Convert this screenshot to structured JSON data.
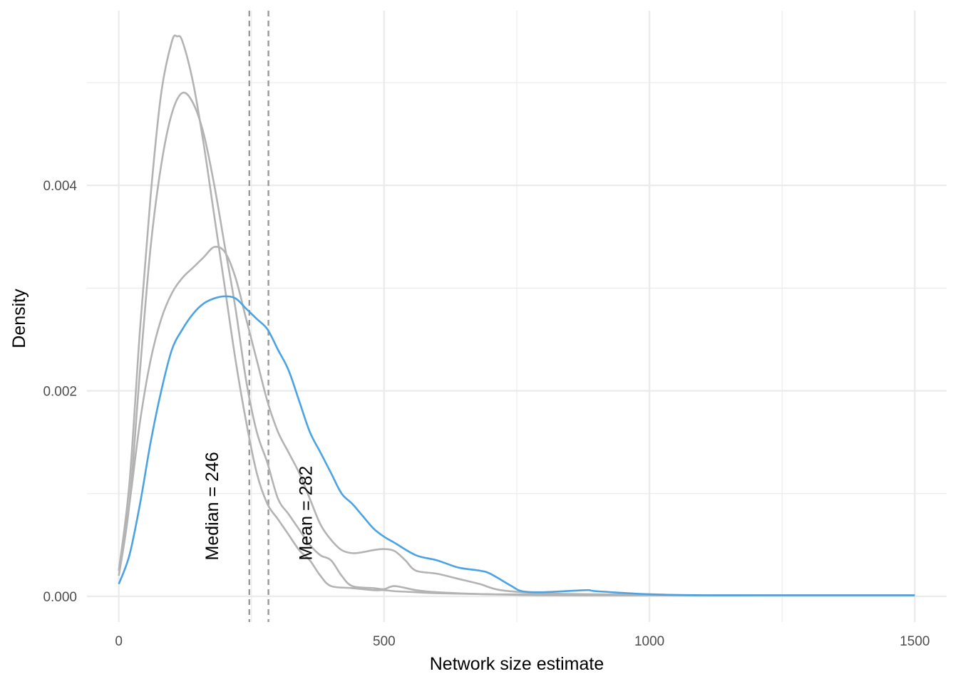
{
  "chart_data": {
    "type": "line",
    "xlabel": "Network size estimate",
    "ylabel": "Density",
    "xlim": [
      -60,
      1560
    ],
    "ylim": [
      -0.00025,
      0.0057
    ],
    "x_ticks": [
      0,
      500,
      1000,
      1500
    ],
    "x_tick_labels": [
      "0",
      "500",
      "1000",
      "1500"
    ],
    "y_ticks": [
      0,
      0.002,
      0.004
    ],
    "y_tick_labels": [
      "0.000",
      "0.002",
      "0.004"
    ],
    "grid": true,
    "legend": "none",
    "colors": {
      "highlight": "#4ba3e3",
      "other": "#b3b3b3",
      "reference": "#999999",
      "grid": "#ebebeb"
    },
    "series": [
      {
        "highlight": false,
        "points": [
          [
            0,
            0.00025
          ],
          [
            20,
            0.0011
          ],
          [
            40,
            0.0026
          ],
          [
            60,
            0.0039
          ],
          [
            80,
            0.0049
          ],
          [
            100,
            0.0054
          ],
          [
            110,
            0.00545
          ],
          [
            120,
            0.0054
          ],
          [
            140,
            0.005
          ],
          [
            160,
            0.0044
          ],
          [
            180,
            0.0037
          ],
          [
            200,
            0.003
          ],
          [
            220,
            0.0023
          ],
          [
            240,
            0.0017
          ],
          [
            260,
            0.0012
          ],
          [
            280,
            0.0009
          ],
          [
            300,
            0.00075
          ],
          [
            320,
            0.0006
          ],
          [
            340,
            0.00045
          ],
          [
            360,
            0.00035
          ],
          [
            380,
            0.0002
          ],
          [
            400,
            0.0001
          ],
          [
            440,
            8e-05
          ],
          [
            480,
            6e-05
          ],
          [
            500,
            6e-05
          ],
          [
            520,
            5e-05
          ],
          [
            560,
            4e-05
          ],
          [
            600,
            3e-05
          ],
          [
            700,
            2e-05
          ],
          [
            800,
            1e-05
          ],
          [
            1000,
            1e-05
          ],
          [
            1200,
            1e-05
          ],
          [
            1500,
            1e-05
          ]
        ]
      },
      {
        "highlight": false,
        "points": [
          [
            0,
            0.0002
          ],
          [
            20,
            0.0009
          ],
          [
            40,
            0.0022
          ],
          [
            60,
            0.0034
          ],
          [
            80,
            0.0042
          ],
          [
            100,
            0.0047
          ],
          [
            120,
            0.0049
          ],
          [
            140,
            0.0048
          ],
          [
            160,
            0.0045
          ],
          [
            180,
            0.004
          ],
          [
            200,
            0.0034
          ],
          [
            220,
            0.0028
          ],
          [
            240,
            0.0021
          ],
          [
            260,
            0.0016
          ],
          [
            280,
            0.0013
          ],
          [
            300,
            0.00095
          ],
          [
            320,
            0.0008
          ],
          [
            340,
            0.00065
          ],
          [
            360,
            0.0005
          ],
          [
            380,
            0.0004
          ],
          [
            400,
            0.00035
          ],
          [
            420,
            0.0002
          ],
          [
            440,
            0.0001
          ],
          [
            480,
            8e-05
          ],
          [
            500,
            7e-05
          ],
          [
            520,
            0.0001
          ],
          [
            560,
            6e-05
          ],
          [
            600,
            4e-05
          ],
          [
            700,
            2e-05
          ],
          [
            800,
            2e-05
          ],
          [
            1000,
            1e-05
          ],
          [
            1500,
            1e-05
          ]
        ]
      },
      {
        "highlight": false,
        "points": [
          [
            0,
            0.00025
          ],
          [
            20,
            0.0009
          ],
          [
            40,
            0.0017
          ],
          [
            60,
            0.0023
          ],
          [
            80,
            0.0027
          ],
          [
            100,
            0.00295
          ],
          [
            120,
            0.0031
          ],
          [
            140,
            0.0032
          ],
          [
            160,
            0.0033
          ],
          [
            180,
            0.0034
          ],
          [
            200,
            0.00335
          ],
          [
            220,
            0.0031
          ],
          [
            240,
            0.0027
          ],
          [
            260,
            0.0023
          ],
          [
            280,
            0.0019
          ],
          [
            300,
            0.0016
          ],
          [
            320,
            0.0014
          ],
          [
            340,
            0.0012
          ],
          [
            360,
            0.00095
          ],
          [
            380,
            0.0007
          ],
          [
            400,
            0.00055
          ],
          [
            420,
            0.00045
          ],
          [
            440,
            0.00042
          ],
          [
            460,
            0.00043
          ],
          [
            480,
            0.00045
          ],
          [
            500,
            0.00046
          ],
          [
            520,
            0.00044
          ],
          [
            540,
            0.00035
          ],
          [
            560,
            0.00025
          ],
          [
            600,
            0.00022
          ],
          [
            640,
            0.00017
          ],
          [
            680,
            0.00012
          ],
          [
            720,
            6e-05
          ],
          [
            800,
            3e-05
          ],
          [
            900,
            2e-05
          ],
          [
            1000,
            2e-05
          ],
          [
            1100,
            1e-05
          ],
          [
            1500,
            1e-05
          ]
        ]
      },
      {
        "highlight": true,
        "points": [
          [
            0,
            0.00012
          ],
          [
            20,
            0.0004
          ],
          [
            40,
            0.0009
          ],
          [
            60,
            0.0015
          ],
          [
            80,
            0.002
          ],
          [
            100,
            0.0024
          ],
          [
            120,
            0.0026
          ],
          [
            140,
            0.00275
          ],
          [
            160,
            0.00285
          ],
          [
            180,
            0.0029
          ],
          [
            200,
            0.00292
          ],
          [
            220,
            0.0029
          ],
          [
            240,
            0.0028
          ],
          [
            260,
            0.0027
          ],
          [
            280,
            0.0026
          ],
          [
            300,
            0.0024
          ],
          [
            320,
            0.0022
          ],
          [
            340,
            0.0019
          ],
          [
            360,
            0.0016
          ],
          [
            380,
            0.0014
          ],
          [
            400,
            0.0012
          ],
          [
            420,
            0.001
          ],
          [
            440,
            0.0009
          ],
          [
            460,
            0.00078
          ],
          [
            480,
            0.00066
          ],
          [
            500,
            0.00058
          ],
          [
            520,
            0.00052
          ],
          [
            560,
            0.0004
          ],
          [
            600,
            0.00035
          ],
          [
            640,
            0.00028
          ],
          [
            680,
            0.00025
          ],
          [
            700,
            0.00022
          ],
          [
            740,
            0.0001
          ],
          [
            760,
            5e-05
          ],
          [
            800,
            4e-05
          ],
          [
            880,
            6e-05
          ],
          [
            900,
            5e-05
          ],
          [
            1000,
            2e-05
          ],
          [
            1100,
            1e-05
          ],
          [
            1200,
            1e-05
          ],
          [
            1300,
            1e-05
          ],
          [
            1400,
            1e-05
          ],
          [
            1500,
            1e-05
          ]
        ]
      }
    ],
    "reference_lines": [
      {
        "x": 246,
        "label": "Median = 246",
        "label_x": 175,
        "label_y": 0.00035
      },
      {
        "x": 282,
        "label": "Mean = 282",
        "label_x": 352,
        "label_y": 0.00035
      }
    ]
  }
}
